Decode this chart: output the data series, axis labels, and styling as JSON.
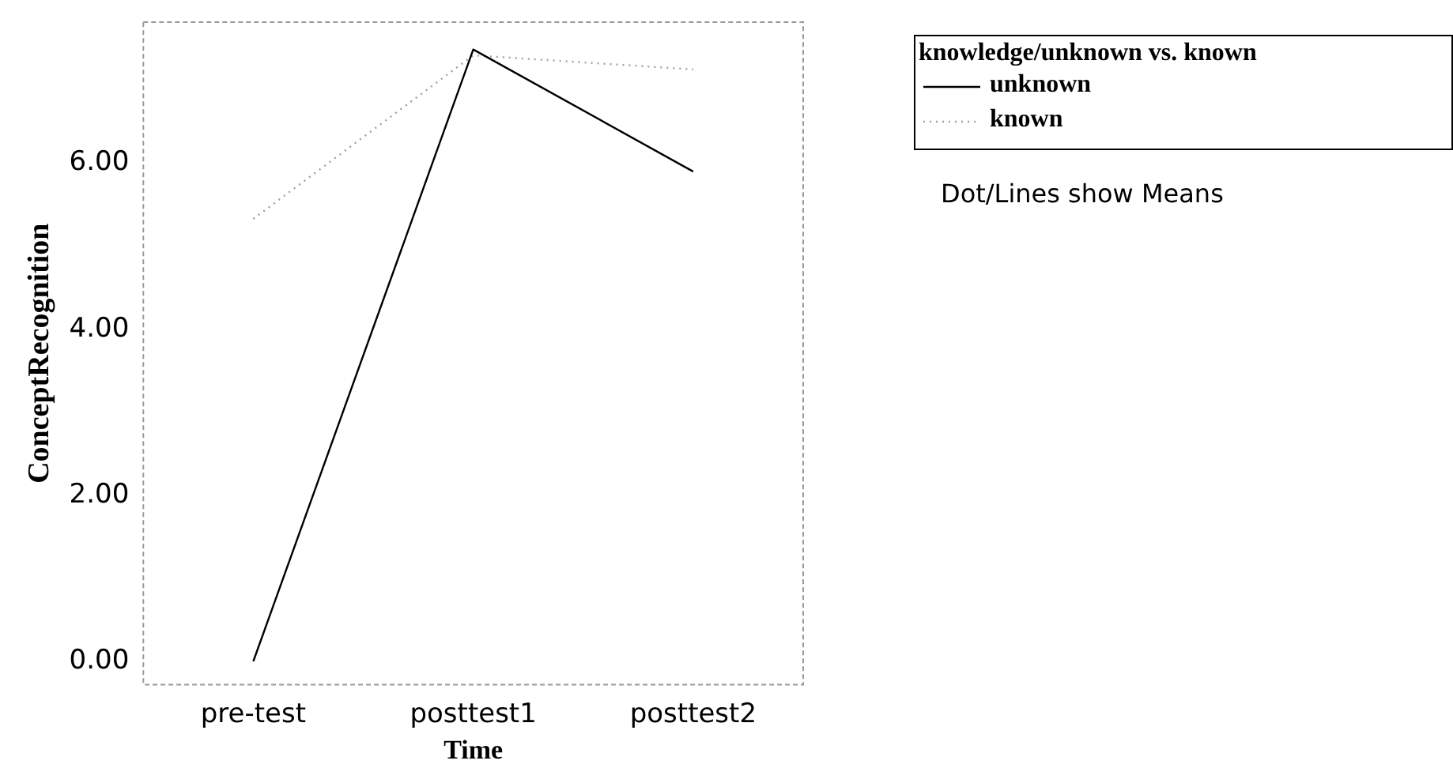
{
  "chart_data": {
    "type": "line",
    "xlabel": "Time",
    "ylabel": "ConceptRecognition",
    "legend_title": "knowledge/unknown vs. known",
    "annotations": [
      "Dot/Lines show Means"
    ],
    "categories": [
      "pre-test",
      "posttest1",
      "posttest2"
    ],
    "series": [
      {
        "name": "unknown",
        "color": "#000000",
        "line_style": "solid",
        "values": [
          0.0,
          7.37,
          5.9
        ]
      },
      {
        "name": "known",
        "color": "#a0a0a0",
        "line_style": "dotted",
        "values": [
          5.33,
          7.3,
          7.13
        ]
      }
    ],
    "ylim": [
      -0.28,
      7.7
    ],
    "yticks": [
      {
        "value": 0,
        "label": "0.00"
      },
      {
        "value": 2,
        "label": "2.00"
      },
      {
        "value": 4,
        "label": "4.00"
      },
      {
        "value": 6,
        "label": "6.00"
      }
    ],
    "grid": false,
    "legend": "top right",
    "marker": "none"
  }
}
